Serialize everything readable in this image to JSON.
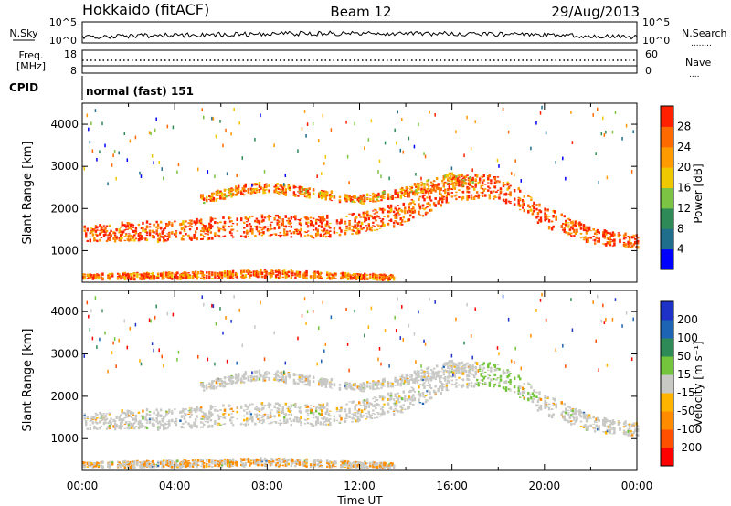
{
  "header": {
    "station": "Hokkaido (fitACF)",
    "beam": "Beam 12",
    "date": "29/Aug/2013"
  },
  "noise_panel": {
    "left_label": "N.Sky",
    "right_label": "N.Search",
    "right_legend_line": "........",
    "y_top": "10^5",
    "y_bottom": "10^0"
  },
  "freq_panel": {
    "left_label_1": "Freq.",
    "left_label_2": "[MHz]",
    "right_label": "Nave",
    "right_legend_line": "....",
    "left_top": "18",
    "left_bottom": "8",
    "right_top": "60",
    "right_bottom": "0"
  },
  "cpid_panel": {
    "label": "CPID",
    "text": "normal (fast) 151"
  },
  "colors": {
    "gray_scatter": "#c8c8c4",
    "power_scale": [
      "#0000ff",
      "#1e6e8c",
      "#2e8b57",
      "#7cc243",
      "#f0c800",
      "#ff9a00",
      "#ff6a00",
      "#ff2000"
    ],
    "velocity_scale": [
      "#1e32c8",
      "#1e64b4",
      "#2e8b57",
      "#74c43c",
      "#c8c8c4",
      "#ffb400",
      "#ff8c00",
      "#ff5000",
      "#ff0000"
    ]
  },
  "chart_data": [
    {
      "type": "heatmap",
      "panel": "power",
      "ylabel": "Slant Range [km]",
      "xlabel": "",
      "ylim": [
        250,
        4500
      ],
      "yticks": [
        1000,
        2000,
        3000,
        4000
      ],
      "xlim_hours": [
        0,
        24
      ],
      "xticks": [
        "00:00",
        "04:00",
        "08:00",
        "12:00",
        "16:00",
        "20:00",
        "00:00"
      ],
      "colorbar": {
        "label": "Power [dB]",
        "ticks": [
          "4",
          "8",
          "12",
          "16",
          "20",
          "24",
          "28"
        ],
        "range": [
          0,
          30
        ]
      },
      "scatter_bands": [
        {
          "name": "main band",
          "t": [
            0,
            2,
            4,
            6,
            8,
            10,
            12,
            14,
            16,
            18,
            20,
            22,
            24
          ],
          "center_km": [
            1400,
            1450,
            1450,
            1550,
            1600,
            1550,
            1650,
            1900,
            2500,
            2500,
            1800,
            1350,
            1200
          ],
          "half_width_km": [
            180,
            220,
            250,
            250,
            250,
            250,
            250,
            280,
            300,
            280,
            250,
            180,
            150
          ],
          "value": 26
        },
        {
          "name": "near range",
          "t": [
            0,
            2,
            4,
            6,
            8,
            10,
            12,
            13.5
          ],
          "center_km": [
            380,
            390,
            400,
            420,
            450,
            420,
            380,
            360
          ],
          "half_width_km": [
            60,
            70,
            80,
            80,
            90,
            80,
            70,
            60
          ],
          "value": 24
        },
        {
          "name": "upper band",
          "t": [
            5,
            7,
            8,
            10,
            12,
            14,
            16,
            17
          ],
          "center_km": [
            2200,
            2450,
            2500,
            2350,
            2200,
            2400,
            2700,
            2600
          ],
          "half_width_km": [
            100,
            120,
            120,
            110,
            100,
            120,
            150,
            120
          ],
          "value": 22
        }
      ]
    },
    {
      "type": "heatmap",
      "panel": "velocity",
      "ylabel": "Slant Range [km]",
      "xlabel": "Time UT",
      "ylim": [
        250,
        4500
      ],
      "yticks": [
        1000,
        2000,
        3000,
        4000
      ],
      "xlim_hours": [
        0,
        24
      ],
      "xticks": [
        "00:00",
        "04:00",
        "08:00",
        "12:00",
        "16:00",
        "20:00",
        "00:00"
      ],
      "colorbar": {
        "label": "Velocity [m s⁻¹]",
        "ticks": [
          "200",
          "100",
          "50",
          "15",
          "-15",
          "-50",
          "-100",
          "-200"
        ],
        "range": [
          -250,
          250
        ]
      }
    }
  ]
}
